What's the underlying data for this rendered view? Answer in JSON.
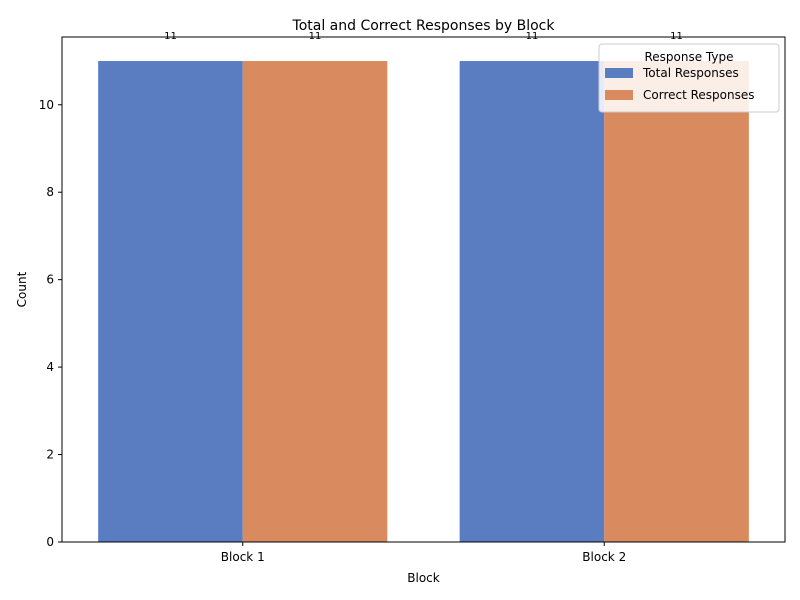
{
  "chart_data": {
    "type": "bar",
    "title": "Total and Correct Responses by Block",
    "xlabel": "Block",
    "ylabel": "Count",
    "categories": [
      "Block 1",
      "Block 2"
    ],
    "series": [
      {
        "name": "Total Responses",
        "values": [
          11,
          11
        ],
        "color": "#5a7cc0"
      },
      {
        "name": "Correct Responses",
        "values": [
          11,
          11
        ],
        "color": "#d98a5f"
      }
    ],
    "ylim": [
      0,
      11.55
    ],
    "yticks": [
      0,
      2,
      4,
      6,
      8,
      10
    ],
    "data_labels": [
      "11",
      "11",
      "11",
      "11"
    ],
    "grid": false,
    "legend": {
      "title": "Response Type",
      "placement": "top-right"
    }
  }
}
